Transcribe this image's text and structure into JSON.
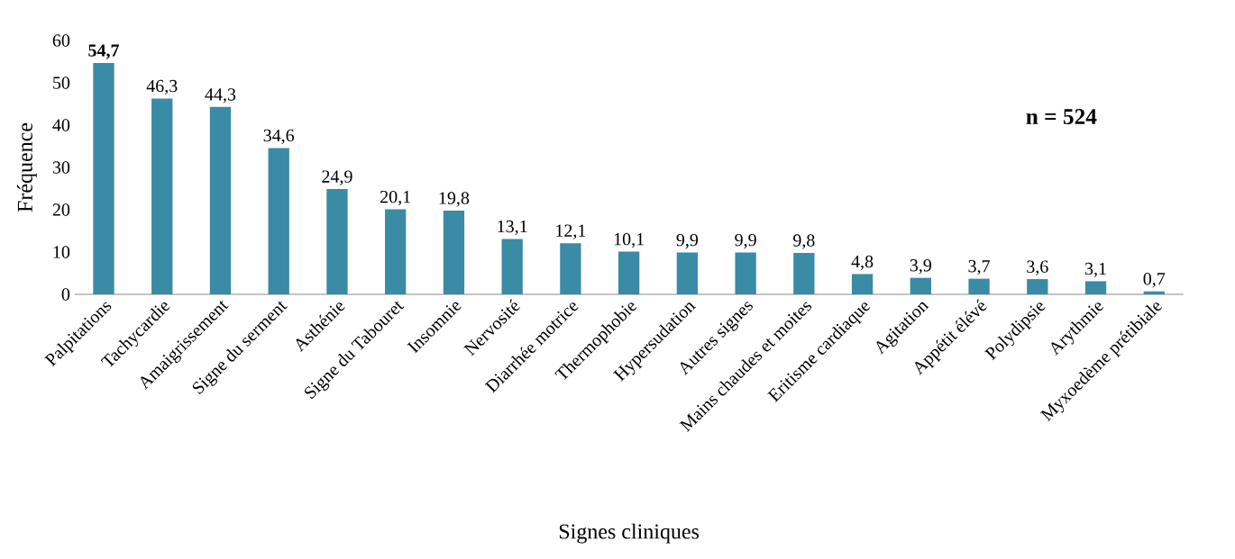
{
  "chart_data": {
    "type": "bar",
    "xlabel": "Signes cliniques",
    "ylabel": "Fréquence",
    "categories": [
      "Palpitations",
      "Tachycardie",
      "Amaigrissement",
      "Signe du serment",
      "Asthénie",
      "Signe du Tabouret",
      "Insomnie",
      "Nervosité",
      "Diarrhée motrice",
      "Thermophobie",
      "Hypersudation",
      "Autres signes",
      "Mains chaudes et moites",
      "Eritisme cardiaque",
      "Agitation",
      "Appétit élévé",
      "Polydipsie",
      "Arythmie",
      "Myxoedème prétibiale"
    ],
    "values": [
      54.7,
      46.3,
      44.3,
      34.6,
      24.9,
      20.1,
      19.8,
      13.1,
      12.1,
      10.1,
      9.9,
      9.9,
      9.8,
      4.8,
      3.9,
      3.7,
      3.6,
      3.1,
      0.7
    ],
    "value_labels": [
      "**54,7**",
      "46,3",
      "44,3",
      "34,6",
      "24,9",
      "20,1",
      "19,8",
      "13,1",
      "12,1",
      "10,1",
      "9,9",
      "9,9",
      "9,8",
      "4,8",
      "3,9",
      "3,7",
      "3,6",
      "3,1",
      "0,7"
    ],
    "color": "#3a8ba5",
    "ylim": [
      0,
      60
    ],
    "yticks": [
      0,
      10,
      20,
      30,
      40,
      50,
      60
    ],
    "grid": false,
    "annotations": [
      "**n = 524**"
    ]
  }
}
